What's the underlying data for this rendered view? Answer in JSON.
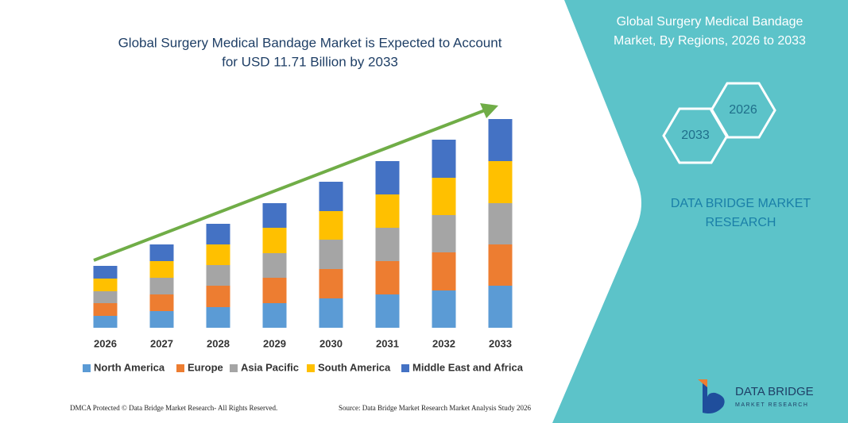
{
  "chart_data": {
    "type": "bar",
    "stacked": true,
    "title": [
      "Global Surgery Medical Bandage Market is Expected to Account",
      "for USD 11.71 Billion by 2033"
    ],
    "categories": [
      "2026",
      "2027",
      "2028",
      "2029",
      "2030",
      "2031",
      "2032",
      "2033"
    ],
    "series": [
      {
        "name": "North America",
        "color": "#5b9bd5",
        "values": [
          15,
          21,
          26,
          31,
          37,
          42,
          47,
          53
        ]
      },
      {
        "name": "Europe",
        "color": "#ed7d31",
        "values": [
          16,
          21,
          27,
          32,
          37,
          42,
          48,
          52
        ]
      },
      {
        "name": "Asia Pacific",
        "color": "#a5a5a5",
        "values": [
          15,
          21,
          26,
          31,
          37,
          42,
          47,
          52
        ]
      },
      {
        "name": "South America",
        "color": "#ffc000",
        "values": [
          16,
          21,
          26,
          32,
          36,
          42,
          47,
          53
        ]
      },
      {
        "name": "Middle East and Africa",
        "color": "#4472c4",
        "values": [
          16,
          21,
          26,
          31,
          37,
          42,
          48,
          53
        ]
      }
    ],
    "ylim": [
      0,
      263
    ]
  },
  "panel": {
    "title": [
      "Global Surgery Medical Bandage",
      "Market, By Regions, 2026 to 2033"
    ],
    "hexagons": [
      "2026",
      "2033"
    ],
    "brand": [
      "DATA BRIDGE MARKET",
      "RESEARCH"
    ]
  },
  "footer": {
    "left": "DMCA Protected © Data Bridge Market Research- All Rights Reserved.",
    "right": "Source: Data Bridge Market Research  Market Analysis Study 2026"
  },
  "logo": {
    "name": "DATA BRIDGE",
    "tagline": "MARKET RESEARCH"
  }
}
